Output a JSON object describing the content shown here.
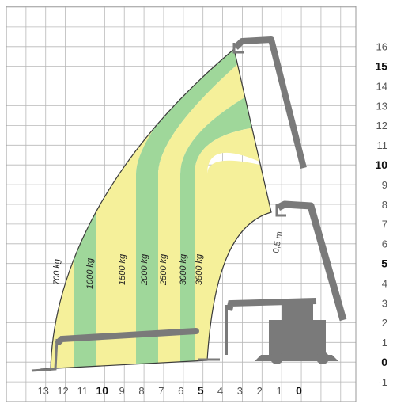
{
  "chart_data": {
    "type": "load-chart-diagram",
    "x_axis": {
      "ticks": [
        "13",
        "12",
        "11",
        "10",
        "9",
        "8",
        "7",
        "6",
        "5",
        "4",
        "3",
        "2",
        "1",
        "0"
      ],
      "bold": [
        "10",
        "5",
        "0"
      ],
      "range": [
        13,
        0
      ]
    },
    "y_axis": {
      "ticks": [
        "-1",
        "0",
        "1",
        "2",
        "3",
        "4",
        "5",
        "6",
        "7",
        "8",
        "9",
        "10",
        "11",
        "12",
        "13",
        "14",
        "15",
        "16"
      ],
      "bold": [
        "0",
        "5",
        "10",
        "15"
      ],
      "range": [
        -1,
        16
      ]
    },
    "load_zones": [
      {
        "label": "700 kg",
        "color": "#f5f09a"
      },
      {
        "label": "1000 kg",
        "color": "#9fd79a"
      },
      {
        "label": "1500 kg",
        "color": "#f5f09a"
      },
      {
        "label": "2000 kg",
        "color": "#9fd79a"
      },
      {
        "label": "2500 kg",
        "color": "#f5f09a"
      },
      {
        "label": "3000 kg",
        "color": "#9fd79a"
      },
      {
        "label": "3800 kg",
        "color": "#f5f09a"
      }
    ],
    "annotations": [
      "0,5 m"
    ],
    "grid": true,
    "colors": {
      "grid": "#b8b8b8",
      "zone_yellow": "#f5f09a",
      "zone_green": "#9fd79a",
      "machine": "#7a7a7a",
      "text": "#4a4a4a"
    }
  }
}
